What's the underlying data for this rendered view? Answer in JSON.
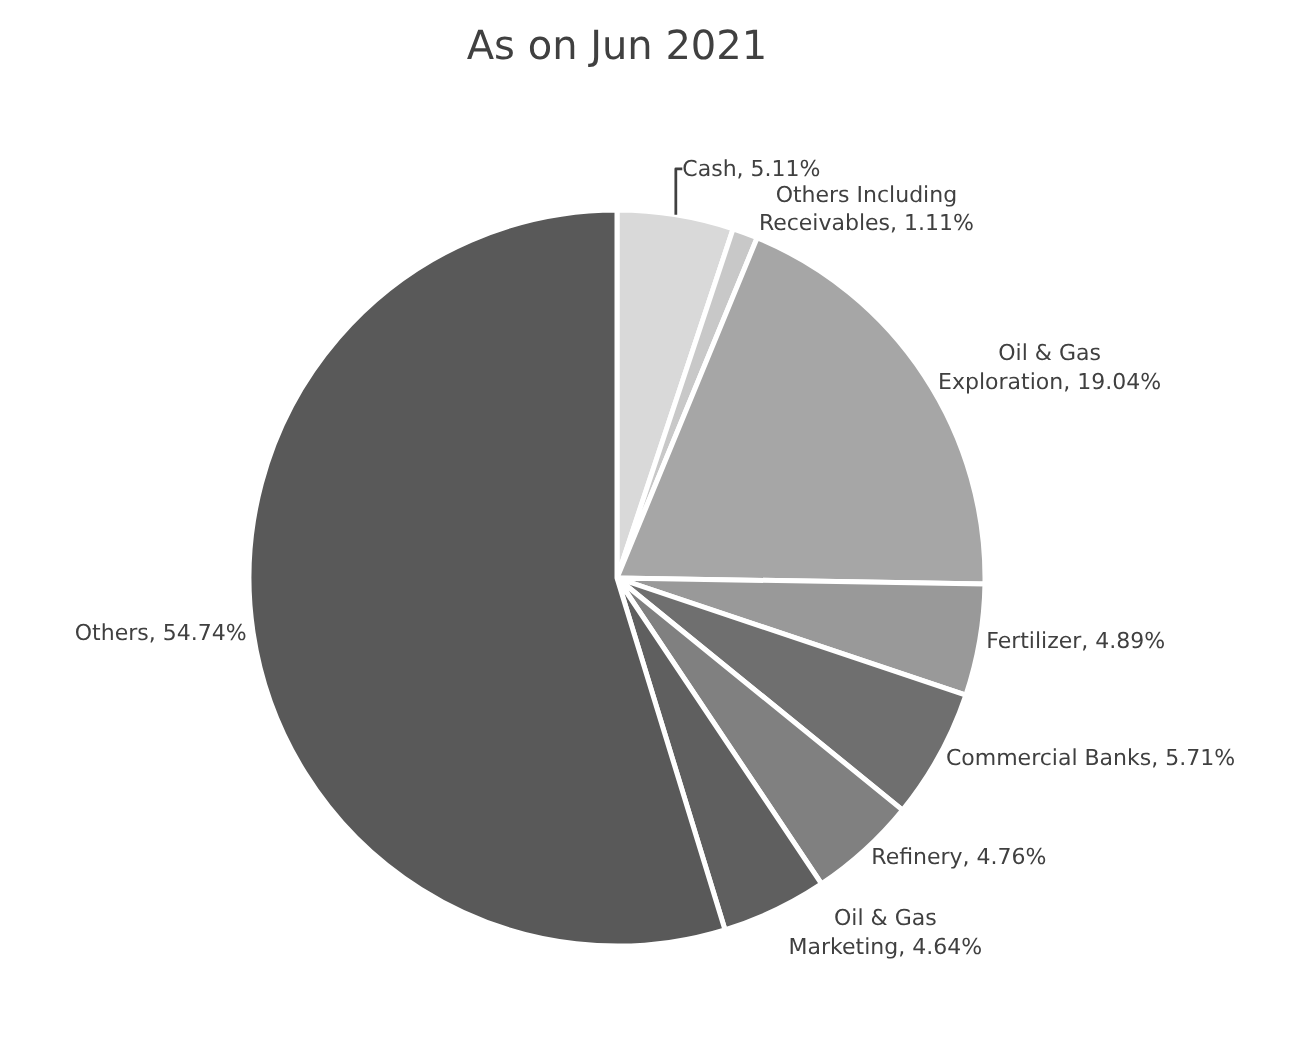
{
  "chart_data": {
    "type": "pie",
    "title": "As on Jun 2021",
    "categories": [
      "Cash",
      "Others Including Receivables",
      "Oil & Gas Exploration",
      "Fertilizer",
      "Commercial Banks",
      "Refinery",
      "Oil & Gas Marketing",
      "Others"
    ],
    "values": [
      5.11,
      1.11,
      19.04,
      4.89,
      5.71,
      4.76,
      4.64,
      54.74
    ],
    "value_labels": [
      "5.11%",
      "1.11%",
      "19.04%",
      "4.89%",
      "5.71%",
      "4.76%",
      "4.64%",
      "54.74%"
    ],
    "colors": [
      "#d9d9d9",
      "#c8c8c8",
      "#a6a6a6",
      "#999999",
      "#6f6f6f",
      "#808080",
      "#5f5f5f",
      "#595959"
    ],
    "legend": false
  }
}
